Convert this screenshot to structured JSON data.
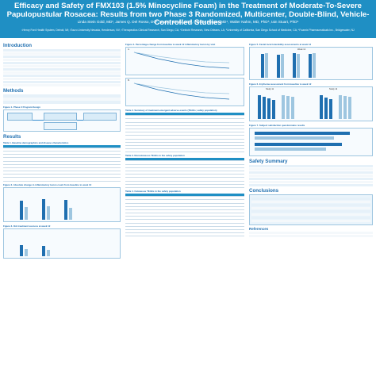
{
  "header": {
    "title": "Efficacy and Safety of FMX103 (1.5% Minocycline Foam) in the Treatment of Moderate-To-Severe Papulopustular Rosacea: Results from two Phase 3 Randomized, Multicenter, Double-Blind, Vehicle-Controlled Studies",
    "authors": "Linda Stein Gold, MD¹, James Q. Del Rosso, DO², Neal D. Bhatia, MD³, Deirdre Hooper, MD⁴, Walter Nahm, MD, PhD⁵, Iain Stuart, PhD⁶",
    "affiliations": "¹Henry Ford Health System, Detroit, MI; ²Touro University Nevada, Henderson, NV; ³Therapeutics Clinical Research, San Diego, CA; ⁴Delricht Research, New Orleans, LA; ⁵University of California, San Diego School of Medicine, CA; ⁶Foamix Pharmaceuticals Inc., Bridgewater, NJ"
  },
  "sections": {
    "introduction": "Introduction",
    "methods": "Methods",
    "results": "Results",
    "safety_summary": "Safety Summary",
    "conclusions": "Conclusions",
    "references": "References"
  },
  "figures": {
    "fig1": "Figure 1. Phase 3 Program Design",
    "fig2": "Figure 2. Absolute change in inflammatory lesion count from baseline to week 12",
    "fig3": "Figure 3. IGA treatment success at week 12",
    "fig4": "Figure 4. Percentage change from baseline to week 12 inflammatory lesion by visit",
    "fig5": "Figure 5. Facial local tolerability assessments at week 12",
    "fig6": "Figure 6. Erythema assessment from baseline to week 12",
    "fig7": "Figure 7. Subject satisfaction questionnaire results"
  },
  "tables": {
    "t1": "Table 1. Baseline demographics and disease characteristics",
    "t2": "Table 2. Summary of treatment-emergent adverse events (TEAEs; safety population)",
    "t3": "Table 3. Noncutaneous TEAEs in the safety population",
    "t4": "Table 4. Cutaneous TEAEs in the safety population"
  },
  "charts": {
    "fig5_title": "Week 12",
    "fig6_study11": "Study 11",
    "fig6_study12": "Study 12",
    "fig4_a": "A.",
    "fig4_b": "B."
  }
}
